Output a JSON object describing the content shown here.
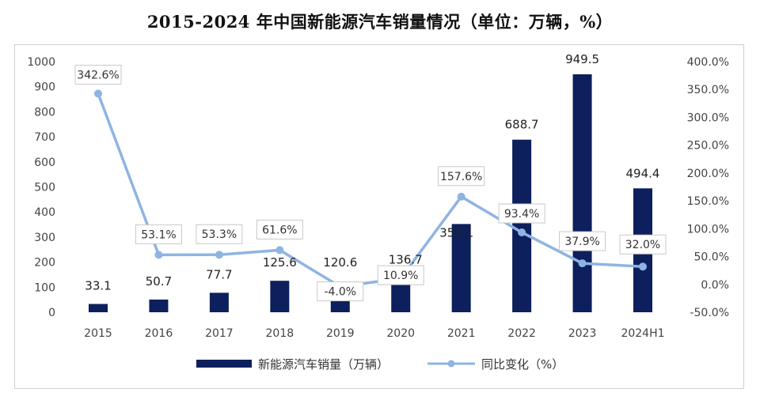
{
  "title": "2015-2024 年中国新能源汽车销量情况（单位：万辆，%）",
  "chart_data": {
    "type": "bar",
    "categories": [
      "2015",
      "2016",
      "2017",
      "2018",
      "2019",
      "2020",
      "2021",
      "2022",
      "2023",
      "2024H1"
    ],
    "series": [
      {
        "name": "新能源汽车销量（万辆）",
        "type": "bar",
        "axis": "left",
        "color": "#0d1f5c",
        "values": [
          33.1,
          50.7,
          77.7,
          125.6,
          120.6,
          136.7,
          352.1,
          688.7,
          949.5,
          494.4
        ],
        "labels": [
          "33.1",
          "50.7",
          "77.7",
          "125.6",
          "120.6",
          "136.7",
          "352.1",
          "688.7",
          "949.5",
          "494.4"
        ]
      },
      {
        "name": "同比变化（%）",
        "type": "line",
        "axis": "right",
        "color": "#8eb4e3",
        "values": [
          342.6,
          53.1,
          53.3,
          61.6,
          -4.0,
          10.9,
          157.6,
          93.4,
          37.9,
          32.0
        ],
        "labels": [
          "342.6%",
          "53.1%",
          "53.3%",
          "61.6%",
          "-4.0%",
          "10.9%",
          "157.6%",
          "93.4%",
          "37.9%",
          "32.0%"
        ]
      }
    ],
    "y_left": {
      "range": [
        0,
        1000
      ],
      "ticks": [
        "0",
        "100",
        "200",
        "300",
        "400",
        "500",
        "600",
        "700",
        "800",
        "900",
        "1000"
      ]
    },
    "y_right": {
      "range": [
        -50,
        400
      ],
      "ticks": [
        "-50.0%",
        "0.0%",
        "50.0%",
        "100.0%",
        "150.0%",
        "200.0%",
        "250.0%",
        "300.0%",
        "350.0%",
        "400.0%"
      ]
    },
    "grid": false,
    "legend_position": "bottom"
  }
}
